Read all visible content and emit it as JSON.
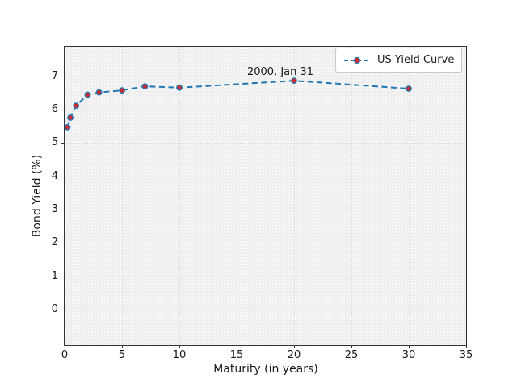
{
  "chart_data": {
    "type": "line",
    "title": "",
    "xlabel": "Maturity (in years)",
    "ylabel": "Bond Yield (%)",
    "annotation": "2000, Jan 31",
    "annotation_anchor_x": 20,
    "annotation_anchor_y": 6.87,
    "xlim": [
      0,
      35
    ],
    "ylim": [
      -1.07,
      7.89
    ],
    "x_ticks": [
      0,
      5,
      10,
      15,
      20,
      25,
      30,
      35
    ],
    "x_tick_labels": [
      "0",
      "5",
      "10",
      "15",
      "20",
      "25",
      "30",
      "35"
    ],
    "y_ticks": [
      0,
      1,
      2,
      3,
      4,
      5,
      6,
      7
    ],
    "y_tick_labels": [
      "0",
      "1",
      "2",
      "3",
      "4",
      "5",
      "6",
      "7"
    ],
    "y_ticks_unlabeled": [
      -1
    ],
    "grid": true,
    "legend_position": "upper right",
    "series": [
      {
        "name": "US Yield Curve",
        "x": [
          0.25,
          0.5,
          1,
          2,
          3,
          5,
          7,
          10,
          20,
          30
        ],
        "y": [
          5.47,
          5.76,
          6.12,
          6.45,
          6.52,
          6.58,
          6.7,
          6.66,
          6.87,
          6.63
        ],
        "line_style": "dashed",
        "marker": "o"
      }
    ],
    "colors": {
      "line": "#2077b4",
      "marker": "#d62728",
      "plot_background": "#efefef",
      "grid": "#cfcfcf",
      "spine": "#333333",
      "text": "#1a1a1a",
      "legend_border": "#c8c8c8",
      "legend_background": "#ffffff"
    }
  }
}
